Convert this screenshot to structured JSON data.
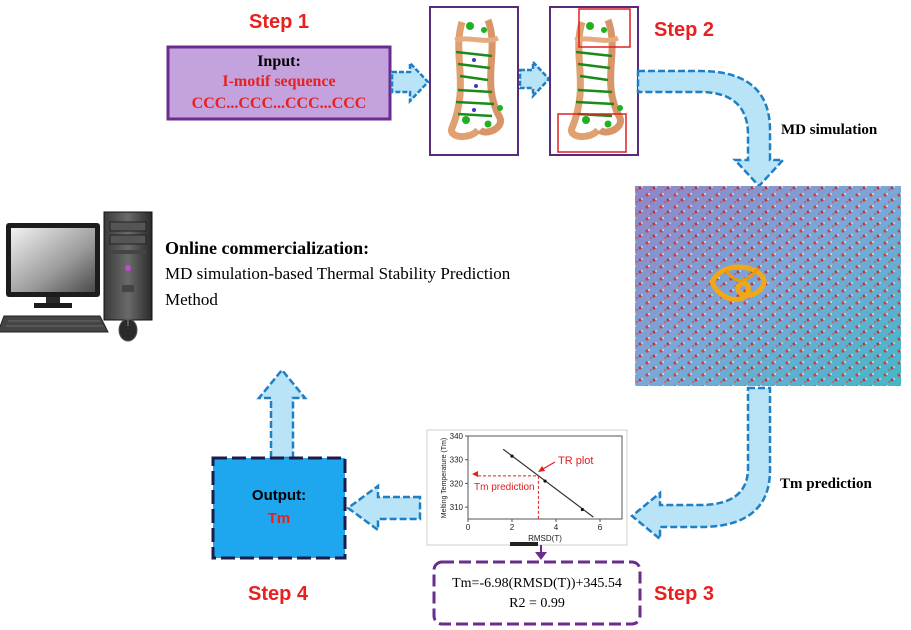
{
  "steps": {
    "step1": "Step 1",
    "step2": "Step 2",
    "step3": "Step 3",
    "step4": "Step 4"
  },
  "input_box": {
    "title": "Input:",
    "line1": "I-motif sequence",
    "line2": "CCC...CCC...CCC...CCC"
  },
  "arrow_labels": {
    "md": "MD simulation",
    "tm": "Tm prediction"
  },
  "commercial": {
    "heading": "Online commercialization:",
    "line1": "MD simulation-based Thermal Stability Prediction",
    "line2": "Method"
  },
  "output_box": {
    "title": "Output:",
    "value": "Tm"
  },
  "formula": {
    "line1": "Tm=-6.98(RMSD(T))+345.54",
    "line2": "R2 = 0.99"
  },
  "chart_data": {
    "type": "line",
    "xlabel": "RMSD(T)",
    "ylabel": "Melting Temperature (Tm)",
    "xlim": [
      0,
      7
    ],
    "ylim": [
      305,
      340
    ],
    "xticks": [
      0,
      2,
      4,
      6
    ],
    "yticks": [
      310,
      320,
      330,
      340
    ],
    "series": [
      {
        "name": "TR plot",
        "points": [
          [
            2.0,
            331.5
          ],
          [
            3.5,
            321.0
          ],
          [
            5.2,
            309.0
          ]
        ]
      }
    ],
    "fit_line": [
      [
        1.6,
        334.4
      ],
      [
        5.7,
        305.8
      ]
    ],
    "annotations": {
      "tr_plot": "TR plot",
      "tm_prediction": "Tm prediction"
    },
    "prediction_point": [
      3.2,
      323.2
    ]
  },
  "colors": {
    "arrow_fill": "#b9e4f7",
    "arrow_stroke": "#1f7fc4",
    "step_red": "#e8201f",
    "input_fill": "#c4a2de",
    "input_border": "#6a2d8f",
    "output_fill": "#1ea6ee",
    "frame_purple": "#5a2a7a",
    "formula_border": "#6a2d8f"
  }
}
